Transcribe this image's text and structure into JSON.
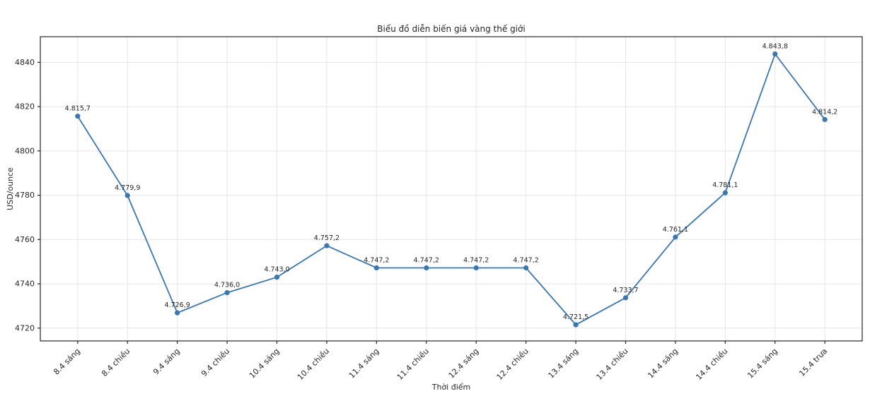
{
  "figure": {
    "title": "Biểu đồ diễn biến giá vàng thế giới",
    "xlabel": "Thời điểm",
    "ylabel": "USD/ounce"
  },
  "chart_data": {
    "type": "line",
    "title": "Biểu đồ diễn biến giá vàng thế giới",
    "xlabel": "Thời điểm",
    "ylabel": "USD/ounce",
    "categories": [
      "8.4 sáng",
      "8.4 chiều",
      "9.4 sáng",
      "9.4 chiều",
      "10.4 sáng",
      "10.4 chiều",
      "11.4 sáng",
      "11.4 chiều",
      "12.4 sáng",
      "12.4 chiều",
      "13.4 sáng",
      "13.4 chiều",
      "14.4 sáng",
      "14.4 chiều",
      "15.4 sáng",
      "15.4 trưa"
    ],
    "values": [
      4815.7,
      4779.9,
      4726.9,
      4736.0,
      4743.0,
      4757.2,
      4747.2,
      4747.2,
      4747.2,
      4747.2,
      4721.5,
      4733.7,
      4761.1,
      4781.1,
      4843.8,
      4814.2
    ],
    "point_labels": [
      "4.815,7",
      "4.779,9",
      "4.726,9",
      "4.736,0",
      "4.743,0",
      "4.757,2",
      "4.747,2",
      "4.747,2",
      "4.747,2",
      "4.747,2",
      "4.721,5",
      "4.733,7",
      "4.761,1",
      "4.781,1",
      "4.843,8",
      "4.814,2"
    ],
    "y_ticks": [
      4720,
      4740,
      4760,
      4780,
      4800,
      4820,
      4840
    ],
    "ylim": [
      4714.2,
      4851.6
    ],
    "grid": true,
    "legend": "none",
    "line_color": "#3b76af",
    "marker": "circle",
    "x_tick_rotation_deg": 45
  },
  "colors": {
    "line": "#3b76af",
    "grid": "#e6e6e6",
    "spine": "#262626",
    "background": "#ffffff",
    "text": "#262626"
  }
}
